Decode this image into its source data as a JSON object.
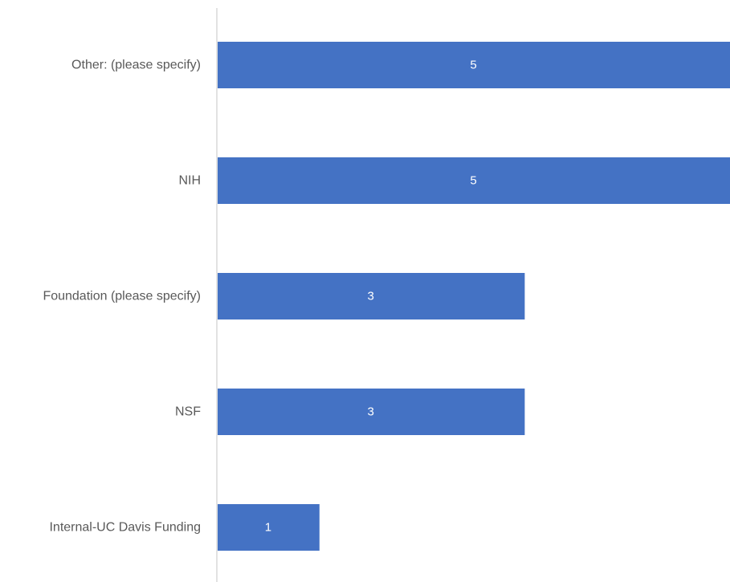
{
  "chart_data": {
    "type": "bar",
    "orientation": "horizontal",
    "categories": [
      "Other: (please specify)",
      "NIH",
      "Foundation (please specify)",
      "NSF",
      "Internal-UC Davis Funding"
    ],
    "values": [
      5,
      5,
      3,
      3,
      1
    ],
    "data_labels": [
      "5",
      "5",
      "3",
      "3",
      "1"
    ],
    "xlim": [
      0,
      5
    ],
    "grid": false,
    "legend": "none",
    "colors": {
      "bar": "#4472C4",
      "axis_line": "#D9D9D9",
      "category_text": "#595959",
      "data_label_text": "#FFFFFF"
    }
  }
}
